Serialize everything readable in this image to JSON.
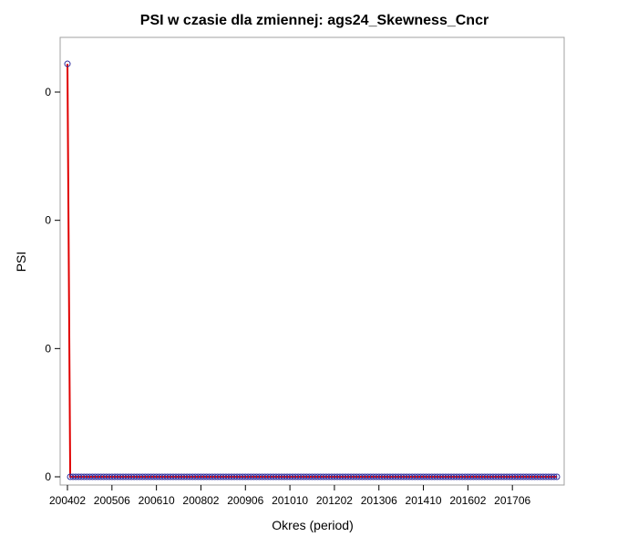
{
  "chart_data": {
    "type": "line",
    "title": "PSI w czasie dla zmiennej: ags24_Skewness_Cncr",
    "xlabel": "Okres (period)",
    "ylabel": "PSI",
    "x_tick_labels": [
      "200402",
      "200506",
      "200610",
      "200802",
      "200906",
      "201010",
      "201202",
      "201306",
      "201410",
      "201602",
      "201706"
    ],
    "y_tick_labels": [
      "0",
      "0",
      "0",
      "0"
    ],
    "y_tick_values": [
      0,
      0.0001,
      0.0002,
      0.0003
    ],
    "ylim": [
      -1e-05,
      0.000339
    ],
    "x_start": "200402",
    "x_end": "201811",
    "series": [
      {
        "line_color": "#e00000",
        "marker_color": "#3030a0",
        "values": [
          0.000322,
          0,
          0,
          0,
          0,
          0,
          0,
          0,
          0,
          0,
          0,
          0,
          0,
          0,
          0,
          0,
          0,
          0,
          0,
          0,
          0,
          0,
          0,
          0,
          0,
          0,
          0,
          0,
          0,
          0,
          0,
          0,
          0,
          0,
          0,
          0,
          0,
          0,
          0,
          0,
          0,
          0,
          0,
          0,
          0,
          0,
          0,
          0,
          0,
          0,
          0,
          0,
          0,
          0,
          0,
          0,
          0,
          0,
          0,
          0,
          0,
          0,
          0,
          0,
          0,
          0,
          0,
          0,
          0,
          0,
          0,
          0,
          0,
          0,
          0,
          0,
          0,
          0,
          0,
          0,
          0,
          0,
          0,
          0,
          0,
          0,
          0,
          0,
          0,
          0,
          0,
          0,
          0,
          0,
          0,
          0,
          0,
          0,
          0,
          0,
          0,
          0,
          0,
          0,
          0,
          0,
          0,
          0,
          0,
          0,
          0,
          0,
          0,
          0,
          0,
          0,
          0,
          0,
          0,
          0,
          0,
          0,
          0,
          0,
          0,
          0,
          0,
          0,
          0,
          0,
          0,
          0,
          0,
          0,
          0,
          0,
          0,
          0,
          0,
          0,
          0,
          0,
          0,
          0,
          0,
          0,
          0,
          0,
          0,
          0,
          0,
          0,
          0,
          0,
          0,
          0,
          0,
          0,
          0,
          0,
          0,
          0,
          0,
          0,
          0,
          0,
          0,
          0,
          0,
          0,
          0,
          0,
          0,
          0,
          0,
          0,
          0
        ]
      }
    ],
    "grid": false,
    "legend": "none"
  }
}
